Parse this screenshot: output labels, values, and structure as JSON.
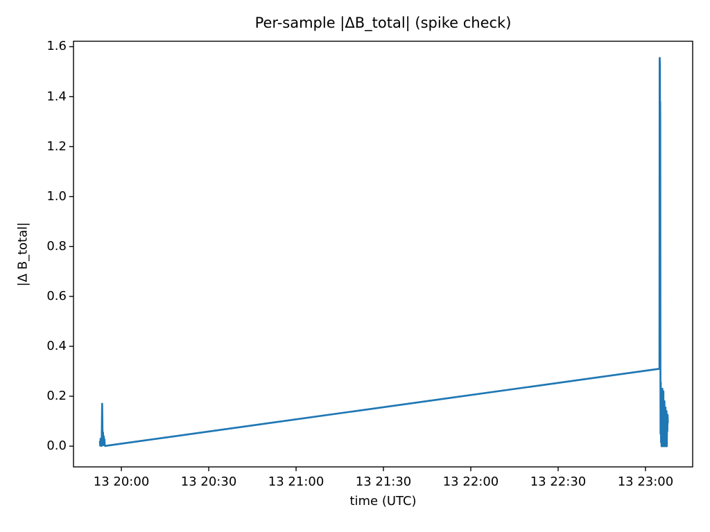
{
  "figure": {
    "background": "#ffffff"
  },
  "chart_data": {
    "type": "line",
    "title": "Per-sample |ΔB_total| (spike check)",
    "xlabel": "time (UTC)",
    "ylabel": "|Δ B_total|",
    "line_color": "#1f77b4",
    "axis_color": "#000000",
    "grid": false,
    "legend": "none",
    "xlim": [
      19.726,
      23.27
    ],
    "ylim": [
      -0.083,
      1.622
    ],
    "x_ticks": [
      {
        "pos": 20.0,
        "label": "13 20:00"
      },
      {
        "pos": 20.5,
        "label": "13 20:30"
      },
      {
        "pos": 21.0,
        "label": "13 21:00"
      },
      {
        "pos": 21.5,
        "label": "13 21:30"
      },
      {
        "pos": 22.0,
        "label": "13 22:00"
      },
      {
        "pos": 22.5,
        "label": "13 22:30"
      },
      {
        "pos": 23.0,
        "label": "13 23:00"
      }
    ],
    "y_ticks": [
      {
        "pos": 0.0,
        "label": "0.0"
      },
      {
        "pos": 0.2,
        "label": "0.2"
      },
      {
        "pos": 0.4,
        "label": "0.4"
      },
      {
        "pos": 0.6,
        "label": "0.6"
      },
      {
        "pos": 0.8,
        "label": "0.8"
      },
      {
        "pos": 1.0,
        "label": "1.0"
      },
      {
        "pos": 1.2,
        "label": "1.2"
      },
      {
        "pos": 1.4,
        "label": "1.4"
      },
      {
        "pos": 1.6,
        "label": "1.6"
      }
    ],
    "x_units": "hours UTC on day 13 (decimal)",
    "series": [
      {
        "name": "|ΔB_total| per sample",
        "points": [
          [
            19.877,
            0.018
          ],
          [
            19.879,
            0.002
          ],
          [
            19.881,
            0.03
          ],
          [
            19.883,
            0.003
          ],
          [
            19.885,
            0.022
          ],
          [
            19.887,
            0.001
          ],
          [
            19.89,
            0.17
          ],
          [
            19.893,
            0.008
          ],
          [
            19.895,
            0.055
          ],
          [
            19.897,
            0.004
          ],
          [
            19.899,
            0.04
          ],
          [
            19.901,
            0.012
          ],
          [
            19.903,
            0.028
          ],
          [
            19.905,
            0.003
          ],
          [
            19.907,
            0.001
          ],
          [
            23.08,
            0.31
          ],
          [
            23.081,
            1.545
          ],
          [
            23.0815,
            1.555
          ],
          [
            23.082,
            1.48
          ],
          [
            23.0825,
            1.54
          ],
          [
            23.083,
            1.35
          ],
          [
            23.084,
            1.38
          ],
          [
            23.0845,
            1.3
          ],
          [
            23.085,
            0.8
          ],
          [
            23.0855,
            0.3
          ],
          [
            23.086,
            0.05
          ],
          [
            23.0875,
            0.255
          ],
          [
            23.089,
            0.015
          ],
          [
            23.0905,
            0.18
          ],
          [
            23.092,
            0.0
          ],
          [
            23.0935,
            0.15
          ],
          [
            23.095,
            0.01
          ],
          [
            23.0965,
            0.23
          ],
          [
            23.098,
            0.0
          ],
          [
            23.0995,
            0.16
          ],
          [
            23.101,
            0.02
          ],
          [
            23.1025,
            0.22
          ],
          [
            23.104,
            0.0
          ],
          [
            23.1055,
            0.13
          ],
          [
            23.107,
            0.005
          ],
          [
            23.1085,
            0.18
          ],
          [
            23.11,
            0.0
          ],
          [
            23.1115,
            0.1
          ],
          [
            23.113,
            0.015
          ],
          [
            23.1145,
            0.155
          ],
          [
            23.116,
            0.0
          ],
          [
            23.1175,
            0.12
          ],
          [
            23.119,
            0.03
          ],
          [
            23.1205,
            0.14
          ],
          [
            23.122,
            0.0
          ],
          [
            23.1235,
            0.11
          ],
          [
            23.125,
            0.06
          ],
          [
            23.1265,
            0.125
          ],
          [
            23.128,
            0.095
          ]
        ]
      }
    ],
    "annotations": {
      "left_spike_peak": 0.17,
      "right_spike_peak": 1.55,
      "gap_line_end_value": 0.31
    }
  }
}
